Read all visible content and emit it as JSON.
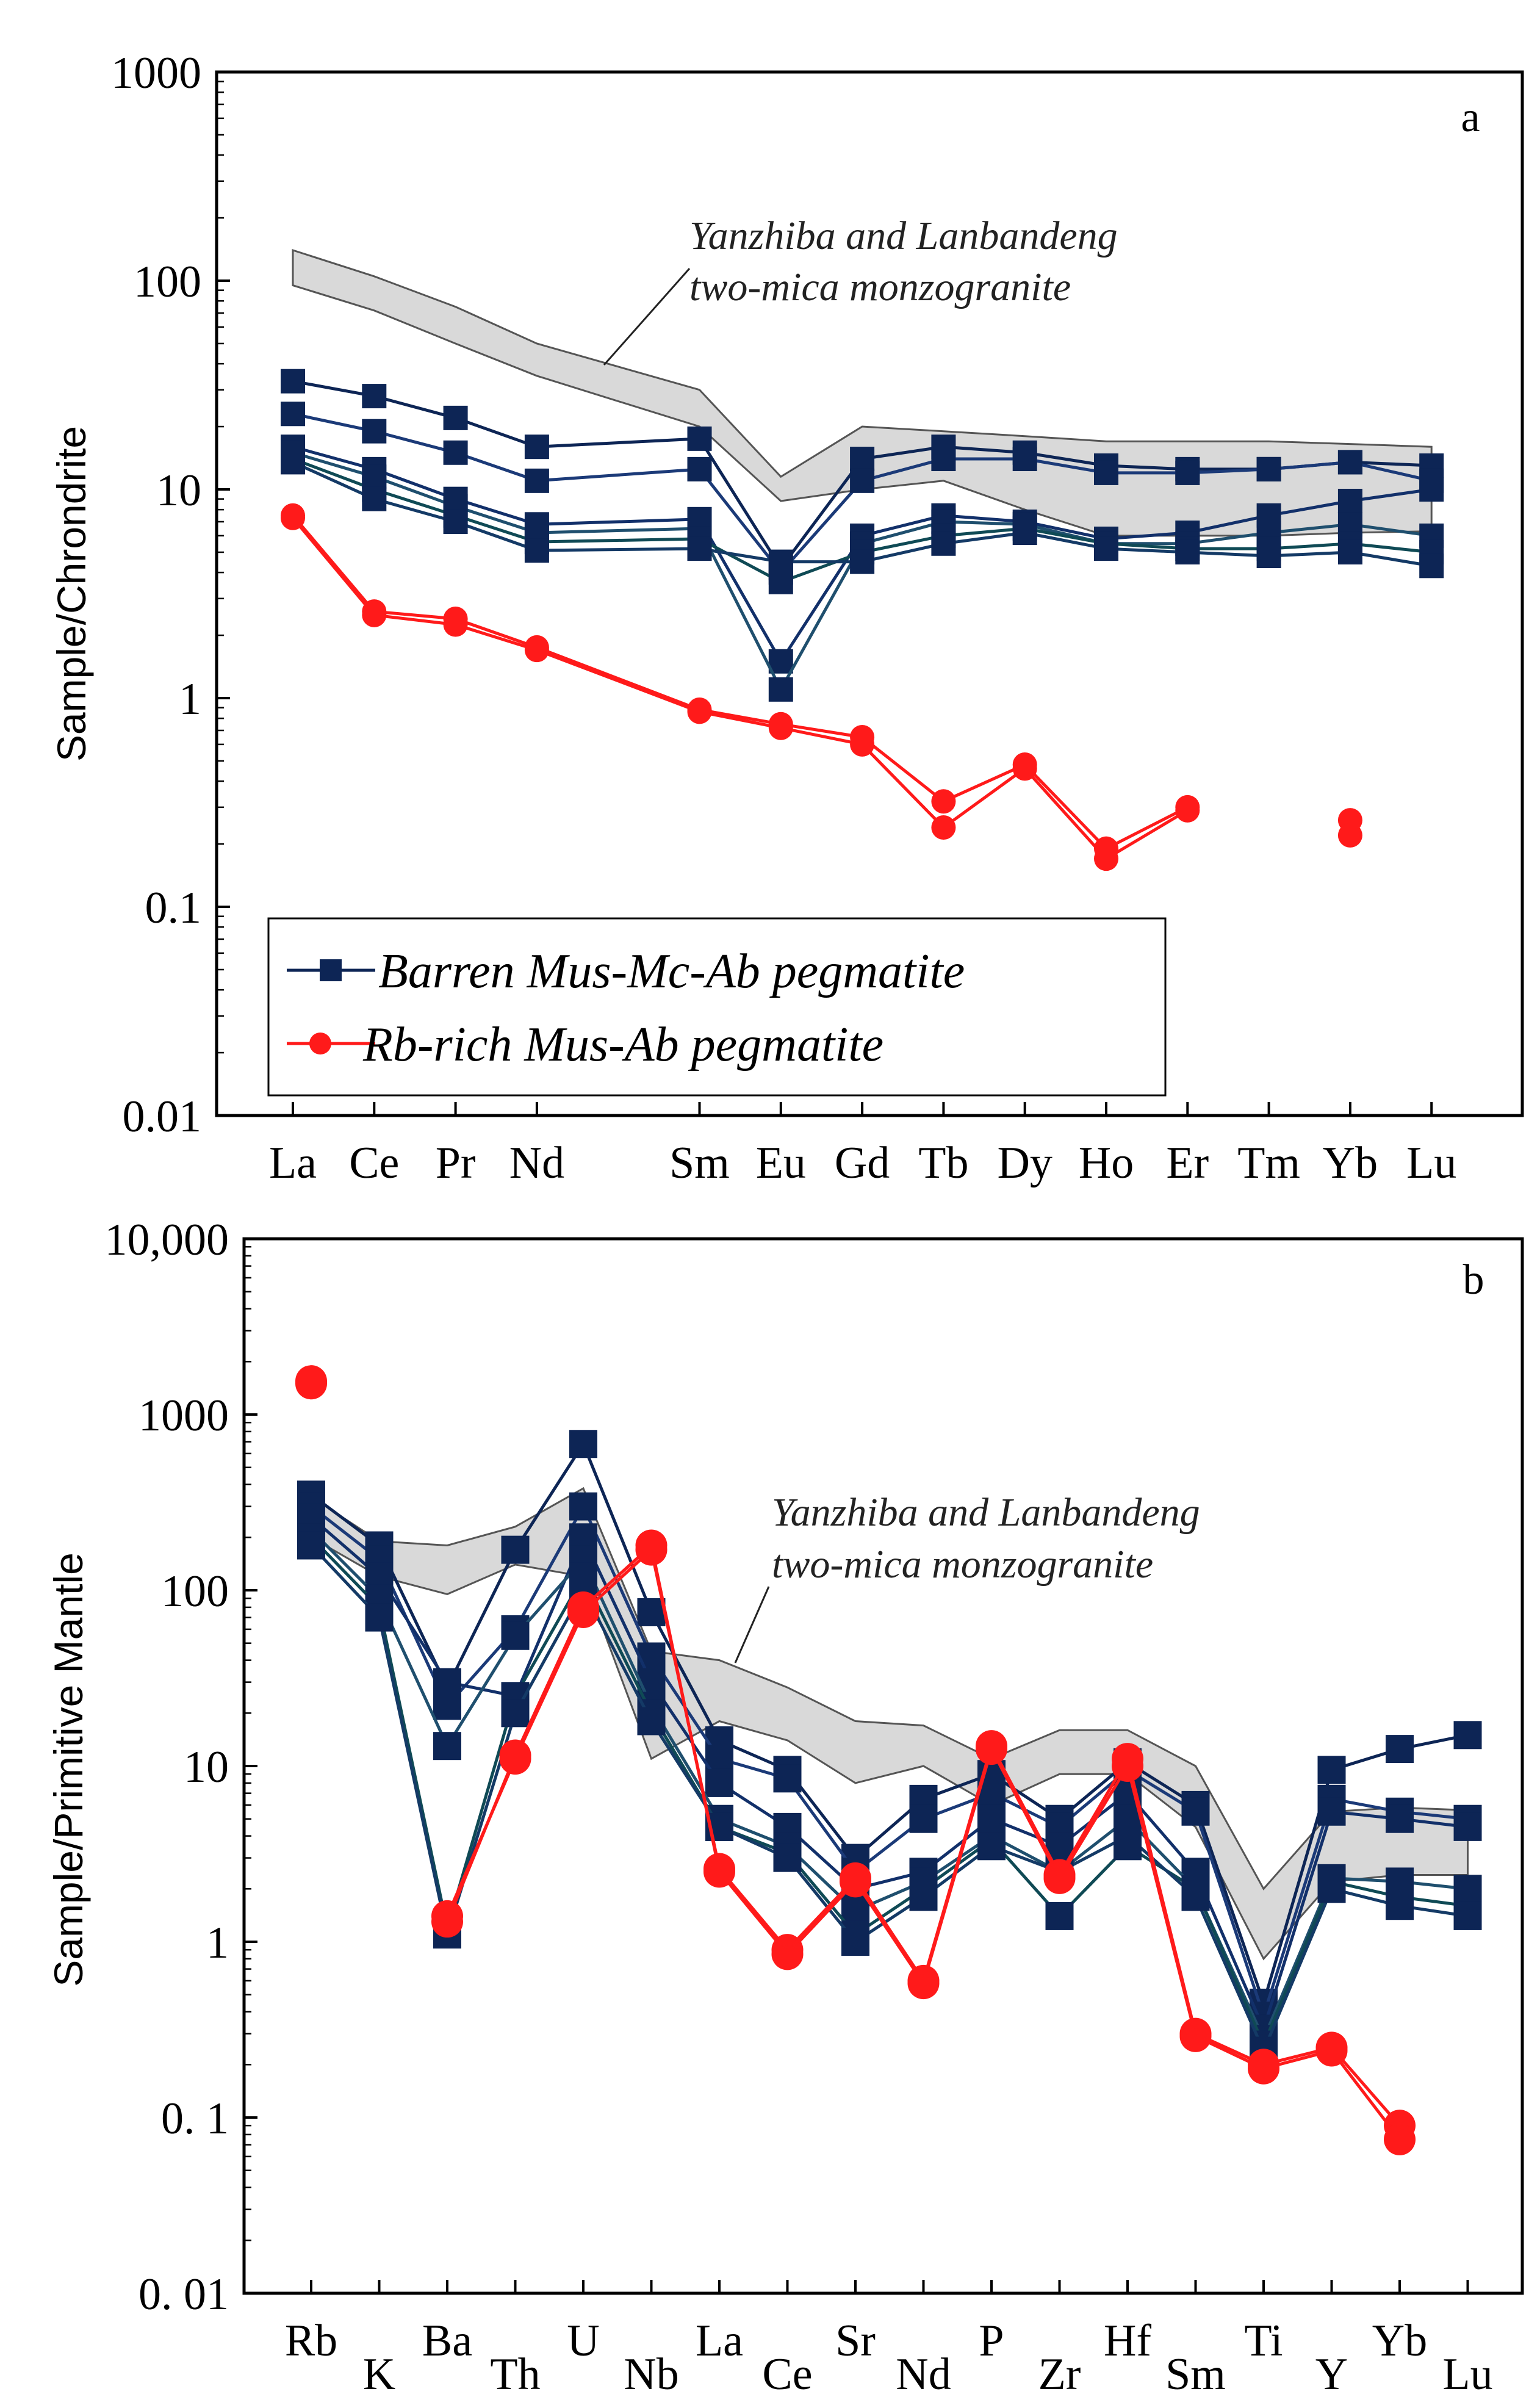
{
  "colors": {
    "barren": "#0d2555",
    "barren_alt": [
      "#0d2555",
      "#1b3a78",
      "#12306a",
      "#1f4f6e",
      "#0f4a55",
      "#143a66",
      "#2a3f80",
      "#0b2a4a"
    ],
    "rb_rich": "#ff1a1a",
    "band_fill": "#d9d9d9",
    "band_stroke": "#555555"
  },
  "chart_data": [
    {
      "panel": "a",
      "type": "line",
      "yscale": "log",
      "ylabel": "Sample/Chrondrite",
      "ylim": [
        0.01,
        1000
      ],
      "yticks": [
        "0.01",
        "0.1",
        "1",
        "10",
        "100",
        "1000"
      ],
      "categories": [
        "La",
        "Ce",
        "Pr",
        "Nd",
        "Sm",
        "Eu",
        "Gd",
        "Tb",
        "Dy",
        "Ho",
        "Er",
        "Tm",
        "Yb",
        "Lu"
      ],
      "x": [
        1,
        2,
        3,
        4,
        6,
        7,
        8,
        9,
        10,
        11,
        12,
        13,
        14,
        15
      ],
      "band": {
        "label": [
          "Yanzhiba  and Lanbandeng",
          "two-mica monzogranite"
        ],
        "upper": [
          140,
          105,
          75,
          50,
          30,
          11.5,
          20,
          19,
          18,
          17,
          17,
          17,
          16.5,
          16
        ],
        "lower": [
          95,
          72,
          50,
          35,
          20,
          8.8,
          10,
          11,
          8,
          6,
          6,
          6,
          6.2,
          6.3
        ]
      },
      "series": [
        {
          "name": "Barren Mus-Mc-Ab  pegmatite",
          "group": "barren",
          "values": [
            33,
            28,
            22,
            16,
            17.5,
            4.2,
            14,
            16,
            15,
            13,
            12.5,
            12.5,
            13.5,
            13
          ]
        },
        {
          "name": "Barren Mus-Mc-Ab  pegmatite",
          "group": "barren",
          "values": [
            23,
            19,
            15,
            11,
            12.5,
            4.0,
            11,
            14,
            14,
            12,
            12,
            12.5,
            13.5,
            11
          ]
        },
        {
          "name": "Barren Mus-Mc-Ab  pegmatite",
          "group": "barren",
          "values": [
            16,
            12.5,
            9,
            6.8,
            7.2,
            1.5,
            6,
            7.5,
            7,
            5.8,
            6.2,
            7.5,
            8.8,
            10
          ]
        },
        {
          "name": "Barren Mus-Mc-Ab  pegmatite",
          "group": "barren",
          "values": [
            15,
            11.5,
            8.3,
            6.2,
            6.5,
            1.1,
            5.5,
            7,
            6.8,
            5.5,
            5.5,
            6.2,
            6.8,
            6
          ]
        },
        {
          "name": "Barren Mus-Mc-Ab  pegmatite",
          "group": "barren",
          "values": [
            14,
            10,
            7.5,
            5.6,
            5.8,
            3.6,
            5,
            6,
            6.5,
            5.5,
            5.2,
            5.2,
            5.5,
            5
          ]
        },
        {
          "name": "Barren Mus-Mc-Ab  pegmatite",
          "group": "barren",
          "values": [
            13.5,
            9,
            7,
            5.1,
            5.2,
            4.5,
            4.5,
            5.5,
            6.2,
            5.2,
            5,
            4.8,
            5,
            4.3
          ]
        },
        {
          "name": "Rb-rich Mus-Ab pegmatite",
          "group": "rb",
          "values": [
            7.5,
            2.6,
            2.4,
            1.75,
            0.88,
            0.75,
            0.65,
            0.32,
            0.48,
            0.19,
            0.3,
            null,
            0.26,
            null
          ]
        },
        {
          "name": "Rb-rich Mus-Ab pegmatite",
          "group": "rb",
          "values": [
            7.3,
            2.5,
            2.25,
            1.7,
            0.86,
            0.72,
            0.6,
            0.24,
            0.46,
            0.17,
            0.29,
            null,
            0.22,
            null
          ]
        }
      ],
      "legend": {
        "placement": "bottom-left",
        "entries": [
          "Barren Mus-Mc-Ab  pegmatite",
          "Rb-rich Mus-Ab pegmatite"
        ]
      }
    },
    {
      "panel": "b",
      "type": "line",
      "yscale": "log",
      "ylabel": "Sample/Primitive Mantle",
      "ylim": [
        0.01,
        10000
      ],
      "yticks": [
        "0. 01",
        "0. 1",
        "1",
        "10",
        "100",
        "1000",
        "10,000"
      ],
      "categories": [
        "Rb",
        "K",
        "Ba",
        "Th",
        "U",
        "Nb",
        "La",
        "Ce",
        "Sr",
        "Nd",
        "P",
        "Zr",
        "Hf",
        "Sm",
        "Ti",
        "Y",
        "Yb",
        "Lu"
      ],
      "x": [
        1,
        2,
        3,
        4,
        5,
        6,
        7,
        8,
        9,
        10,
        11,
        12,
        13,
        14,
        15,
        16,
        17,
        18
      ],
      "band": {
        "label": [
          "Yanzhiba  and Lanbandeng",
          "two-mica monzogranite"
        ],
        "upper": [
          340,
          190,
          180,
          230,
          380,
          45,
          40,
          28,
          18,
          17,
          11,
          16,
          16,
          10,
          2.0,
          5.5,
          5.8,
          5.6
        ],
        "lower": [
          200,
          120,
          95,
          140,
          120,
          11,
          18,
          14,
          8,
          10,
          6,
          9,
          9,
          4.5,
          0.8,
          2.2,
          2.4,
          2.4
        ]
      },
      "series": [
        {
          "name": "Barren Mus-Mc-Ab  pegmatite",
          "group": "barren",
          "values": [
            350,
            180,
            28,
            170,
            680,
            75,
            14,
            9.5,
            3.0,
            6.5,
            9,
            5,
            10.5,
            6,
            0.45,
            9.5,
            12.5,
            15
          ]
        },
        {
          "name": "Barren Mus-Mc-Ab  pegmatite",
          "group": "barren",
          "values": [
            300,
            150,
            22,
            60,
            300,
            42,
            11,
            8.5,
            2.5,
            5,
            7,
            4.5,
            9.5,
            5.5,
            0.38,
            6.5,
            5.5,
            5
          ]
        },
        {
          "name": "Barren Mus-Mc-Ab  pegmatite",
          "group": "barren",
          "values": [
            260,
            120,
            30,
            25,
            200,
            30,
            8,
            4.5,
            2.0,
            2.5,
            5,
            3.5,
            7,
            2.5,
            0.32,
            5.5,
            5,
            4.5
          ]
        },
        {
          "name": "Barren Mus-Mc-Ab  pegmatite",
          "group": "barren",
          "values": [
            220,
            90,
            13,
            55,
            150,
            22,
            5,
            3.5,
            1.5,
            2.2,
            4,
            2.5,
            5,
            2.0,
            0.28,
            2.3,
            2.2,
            2.0
          ]
        },
        {
          "name": "Barren Mus-Mc-Ab  pegmatite",
          "group": "barren",
          "values": [
            200,
            80,
            1.2,
            25,
            120,
            20,
            4.5,
            3.2,
            1.1,
            2.0,
            3.8,
            1.4,
            3.5,
            2.0,
            0.26,
            2.2,
            1.8,
            1.6
          ]
        },
        {
          "name": "Barren Mus-Mc-Ab  pegmatite",
          "group": "barren",
          "values": [
            180,
            70,
            1.1,
            20,
            100,
            18,
            4.5,
            3.0,
            1.0,
            1.8,
            3.5,
            2.5,
            4,
            1.8,
            0.24,
            2.0,
            1.6,
            1.4
          ]
        },
        {
          "name": "Rb-rich Mus-Ab pegmatite",
          "group": "rb",
          "values": [
            1550,
            null,
            1.4,
            11,
            75,
            170,
            2.6,
            0.9,
            2.3,
            0.6,
            13,
            2.4,
            11,
            0.3,
            0.2,
            0.25,
            0.09,
            null
          ]
        },
        {
          "name": "Rb-rich Mus-Ab pegmatite",
          "group": "rb",
          "values": [
            1500,
            null,
            1.3,
            11.5,
            80,
            180,
            2.5,
            0.85,
            2.2,
            0.58,
            12.5,
            2.3,
            10,
            0.29,
            0.19,
            0.24,
            0.075,
            null
          ]
        }
      ]
    }
  ],
  "panel_a": {
    "letter": "a",
    "ylabel": "Sample/Chrondrite",
    "annotation_line1": "Yanzhiba  and Lanbandeng",
    "annotation_line2": "two-mica monzogranite",
    "legend_barren": "Barren Mus-Mc-Ab  pegmatite",
    "legend_rb": "Rb-rich Mus-Ab pegmatite"
  },
  "panel_b": {
    "letter": "b",
    "ylabel": "Sample/Primitive Mantle",
    "annotation_line1": "Yanzhiba  and Lanbandeng",
    "annotation_line2": "two-mica monzogranite"
  }
}
